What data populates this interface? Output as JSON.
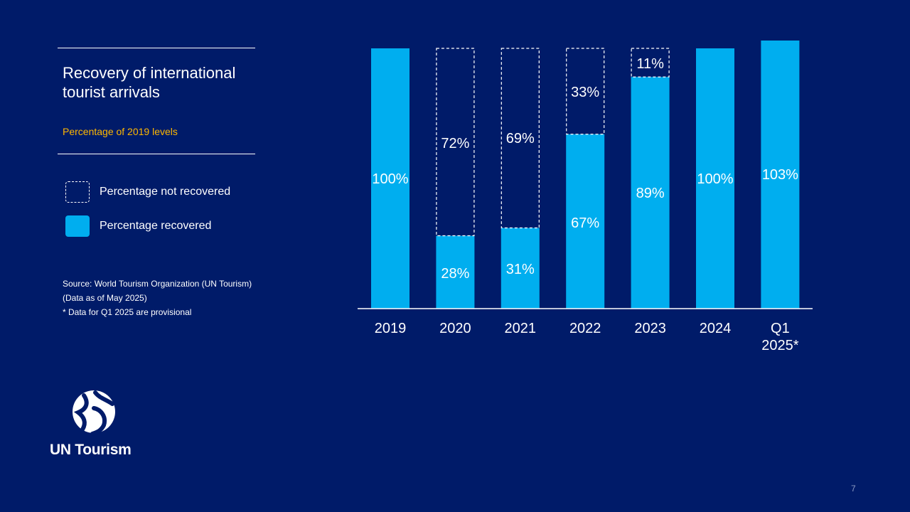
{
  "header": {
    "title": "Recovery of international tourist arrivals",
    "subtitle": "Percentage of 2019 levels"
  },
  "legend": [
    {
      "label": "Percentage not recovered",
      "style": "dashed"
    },
    {
      "label": "Percentage recovered",
      "style": "solid"
    }
  ],
  "notes": [
    "Source: World Tourism Organization (UN Tourism)",
    "(Data as of May 2025)",
    "* Data for Q1 2025 are provisional"
  ],
  "logo": {
    "text": "UN Tourism",
    "icon": "un-tourism-logo-icon"
  },
  "page_number": "7",
  "colors": {
    "background": "#001b69",
    "recovered": "#00aeef",
    "not_recovered_border": "#ffffff",
    "subtitle": "#ffb800"
  },
  "chart_data": {
    "type": "bar",
    "stacked": true,
    "categories": [
      [
        "2019"
      ],
      [
        "2020"
      ],
      [
        "2021"
      ],
      [
        "2022"
      ],
      [
        "2023"
      ],
      [
        "2024"
      ],
      [
        "Q1",
        "2025*"
      ]
    ],
    "series": [
      {
        "name": "Percentage recovered",
        "values": [
          100,
          28,
          31,
          67,
          89,
          100,
          103
        ],
        "labels": [
          "100%",
          "28%",
          "31%",
          "67%",
          "89%",
          "100%",
          "103%"
        ]
      },
      {
        "name": "Percentage not recovered",
        "values": [
          0,
          72,
          69,
          33,
          11,
          0,
          0
        ],
        "labels": [
          "",
          "72%",
          "69%",
          "33%",
          "11%",
          "",
          ""
        ]
      }
    ],
    "ylim": [
      0,
      103
    ],
    "grid": false,
    "legend": "left"
  }
}
